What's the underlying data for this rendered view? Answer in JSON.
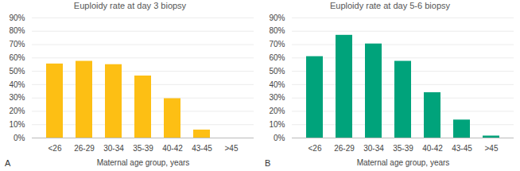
{
  "chart_data": [
    {
      "type": "bar",
      "title": "Euploidy rate at day 3 biopsy",
      "annotations": [
        "A"
      ],
      "xlabel": "Maternal age group, years",
      "categories": [
        "<26",
        "26-29",
        "30-34",
        "35-39",
        "40-42",
        "43-45",
        ">45"
      ],
      "values": [
        55.5,
        57.5,
        55,
        46.5,
        29.5,
        6,
        0
      ],
      "color": "#fdbf14",
      "ylim": [
        0,
        90
      ],
      "yticks": [
        {
          "value": 0,
          "label": "0%"
        },
        {
          "value": 10,
          "label": "10%"
        },
        {
          "value": 20,
          "label": "20%"
        },
        {
          "value": 30,
          "label": "30%"
        },
        {
          "value": 40,
          "label": "40%"
        },
        {
          "value": 50,
          "label": "50%"
        },
        {
          "value": 60,
          "label": "60%"
        },
        {
          "value": 70,
          "label": "70%"
        },
        {
          "value": 80,
          "label": "80%"
        },
        {
          "value": 90,
          "label": "90%"
        }
      ],
      "grid": true
    },
    {
      "type": "bar",
      "title": "Euploidy rate at day 5-6 biopsy",
      "annotations": [
        "B"
      ],
      "xlabel": "Maternal age group, years",
      "categories": [
        "<26",
        "26-29",
        "30-34",
        "35-39",
        "40-42",
        "43-45",
        ">45"
      ],
      "values": [
        61,
        77,
        70.5,
        57.5,
        34,
        13.5,
        1.5
      ],
      "color": "#00a37b",
      "ylim": [
        0,
        90
      ],
      "yticks": [
        {
          "value": 0,
          "label": "0%"
        },
        {
          "value": 10,
          "label": "10%"
        },
        {
          "value": 20,
          "label": "20%"
        },
        {
          "value": 30,
          "label": "30%"
        },
        {
          "value": 40,
          "label": "40%"
        },
        {
          "value": 50,
          "label": "50%"
        },
        {
          "value": 60,
          "label": "60%"
        },
        {
          "value": 70,
          "label": "70%"
        },
        {
          "value": 80,
          "label": "80%"
        },
        {
          "value": 90,
          "label": "90%"
        }
      ],
      "grid": true
    }
  ]
}
